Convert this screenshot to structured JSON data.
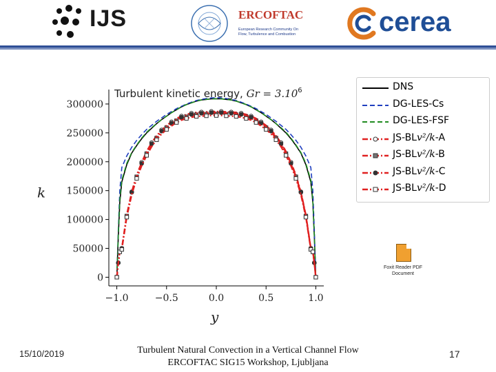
{
  "header": {
    "ijs_logo_text": "IJS",
    "ercoftac_title": "ERCOFTAC",
    "ercoftac_subtitle": "European Research Community On Flow, Turbulence and Combustion",
    "cerea_logo_text": "cerea",
    "rule_color": "#2f4f96"
  },
  "attachment": {
    "icon": "pdf-file-icon",
    "label_line1": "Foxit Reader PDF",
    "label_line2": "Document"
  },
  "footer": {
    "date": "15/10/2019",
    "title_line1": "Turbulent Natural Convection in a Vertical Channel Flow",
    "title_line2": "ERCOFTAC SIG15 Workshop, Ljubljana",
    "page_number": "17"
  },
  "chart_data": {
    "type": "line",
    "title": "Turbulent kinetic energy, Gr = 3.10^6",
    "title_prefix": "Turbulent kinetic energy, ",
    "title_math": "Gr = 3.10",
    "title_exponent": "6",
    "xlabel": "y",
    "ylabel": "k",
    "xlim": [
      -1.08,
      1.08
    ],
    "ylim": [
      -15000,
      325000
    ],
    "xticks": [
      -1.0,
      -0.5,
      0.0,
      0.5,
      1.0
    ],
    "xtick_labels": [
      "−1.0",
      "−0.5",
      "0.0",
      "0.5",
      "1.0"
    ],
    "yticks": [
      0,
      50000,
      100000,
      150000,
      200000,
      250000,
      300000
    ],
    "ytick_labels": [
      "0",
      "50000",
      "100000",
      "150000",
      "200000",
      "250000",
      "300000"
    ],
    "grid": false,
    "legend_position": "outside-right",
    "x": [
      -1.0,
      -0.985,
      -0.97,
      -0.95,
      -0.9,
      -0.85,
      -0.8,
      -0.75,
      -0.7,
      -0.65,
      -0.6,
      -0.55,
      -0.5,
      -0.45,
      -0.4,
      -0.35,
      -0.3,
      -0.25,
      -0.2,
      -0.15,
      -0.1,
      -0.05,
      0.0,
      0.05,
      0.1,
      0.15,
      0.2,
      0.25,
      0.3,
      0.35,
      0.4,
      0.45,
      0.5,
      0.55,
      0.6,
      0.65,
      0.7,
      0.75,
      0.8,
      0.85,
      0.9,
      0.95,
      0.97,
      0.985,
      1.0
    ],
    "series": [
      {
        "name": "DNS",
        "color": "#000000",
        "dash": "solid",
        "marker": "none",
        "values": [
          0,
          70000,
          130000,
          165000,
          195000,
          215000,
          228000,
          240000,
          250000,
          258000,
          266000,
          273000,
          279000,
          285000,
          290000,
          295000,
          299000,
          302000,
          305000,
          307000,
          308000,
          309000,
          309000,
          309000,
          308000,
          307000,
          305000,
          302000,
          299000,
          295000,
          290000,
          285000,
          279000,
          273000,
          266000,
          258000,
          250000,
          240000,
          228000,
          215000,
          195000,
          165000,
          130000,
          70000,
          0
        ]
      },
      {
        "name": "DG-LES-Cs",
        "color": "#1f3fbf",
        "dash": "dashed",
        "marker": "none",
        "values": [
          0,
          80000,
          150000,
          190000,
          210000,
          225000,
          237000,
          247000,
          256000,
          263000,
          270000,
          276000,
          282000,
          287000,
          292000,
          296000,
          300000,
          303000,
          306000,
          308000,
          309500,
          310500,
          311000,
          310500,
          309500,
          308000,
          306000,
          303000,
          300000,
          296000,
          292000,
          287000,
          282000,
          276000,
          270000,
          263000,
          256000,
          247000,
          237000,
          225000,
          210000,
          190000,
          150000,
          80000,
          0
        ]
      },
      {
        "name": "DG-LES-FSF",
        "color": "#1e8a1e",
        "dash": "dashed",
        "marker": "none",
        "values": [
          0,
          72000,
          133000,
          168000,
          197000,
          216000,
          229000,
          241000,
          251000,
          259000,
          266000,
          273000,
          279000,
          285000,
          290000,
          295000,
          299000,
          302000,
          305000,
          307000,
          308000,
          309000,
          309000,
          309000,
          308000,
          307000,
          305000,
          302000,
          299000,
          295000,
          290000,
          285000,
          279000,
          273000,
          266000,
          259000,
          251000,
          241000,
          229000,
          216000,
          197000,
          168000,
          133000,
          72000,
          0
        ]
      },
      {
        "name": "JS-BLv2/k-A",
        "color": "#e02020",
        "dash": "dashdot",
        "marker": "circle",
        "values": [
          0,
          25000,
          45000,
          50000,
          108000,
          148000,
          177000,
          199000,
          218000,
          233000,
          245000,
          255000,
          263000,
          269000,
          275000,
          279000,
          282000,
          284000,
          285500,
          286000,
          286500,
          287000,
          287000,
          287000,
          286500,
          286000,
          285500,
          284000,
          282000,
          279000,
          275000,
          269000,
          263000,
          255000,
          245000,
          233000,
          218000,
          199000,
          177000,
          148000,
          108000,
          50000,
          45000,
          25000,
          0
        ]
      },
      {
        "name": "JS-BLv2/k-B",
        "color": "#e02020",
        "dash": "dashdot",
        "marker": "square",
        "values": [
          0,
          24000,
          44000,
          49000,
          106000,
          146000,
          174000,
          196000,
          214000,
          229000,
          241000,
          251000,
          259000,
          265000,
          271000,
          275000,
          278000,
          280000,
          281500,
          282000,
          282500,
          283000,
          283000,
          283000,
          282500,
          282000,
          281500,
          280000,
          278000,
          275000,
          271000,
          265000,
          259000,
          251000,
          241000,
          229000,
          214000,
          196000,
          174000,
          146000,
          106000,
          49000,
          44000,
          24000,
          0
        ]
      },
      {
        "name": "JS-BLv2/k-C",
        "color": "#e02020",
        "dash": "dashdot",
        "marker": "filled-circle",
        "values": [
          0,
          25000,
          45000,
          50000,
          107000,
          147000,
          175000,
          197000,
          216000,
          231000,
          243000,
          253000,
          261000,
          267000,
          273000,
          277000,
          280000,
          282000,
          283500,
          284000,
          284500,
          285000,
          285000,
          285000,
          284500,
          284000,
          283500,
          282000,
          280000,
          277000,
          273000,
          267000,
          261000,
          253000,
          243000,
          231000,
          216000,
          197000,
          175000,
          147000,
          107000,
          50000,
          45000,
          25000,
          0
        ]
      },
      {
        "name": "JS-BLv2/k-D",
        "color": "#e02020",
        "dash": "dashdot",
        "marker": "open-square",
        "values": [
          0,
          24000,
          44000,
          48000,
          104000,
          143000,
          171000,
          193000,
          211000,
          226000,
          238000,
          248000,
          256000,
          262000,
          268000,
          272000,
          275000,
          277000,
          278500,
          279000,
          279500,
          280000,
          280000,
          280000,
          279500,
          279000,
          278500,
          277000,
          275000,
          272000,
          268000,
          262000,
          256000,
          248000,
          238000,
          226000,
          211000,
          193000,
          171000,
          143000,
          104000,
          48000,
          44000,
          24000,
          0
        ]
      }
    ],
    "legend_labels": [
      {
        "prefix": "DNS",
        "math": "",
        "suffix": ""
      },
      {
        "prefix": "DG-LES-Cs",
        "math": "",
        "suffix": ""
      },
      {
        "prefix": "DG-LES-FSF",
        "math": "",
        "suffix": ""
      },
      {
        "prefix": "JS-BL",
        "math": "v²/k",
        "suffix": "-A"
      },
      {
        "prefix": "JS-BL",
        "math": "v²/k",
        "suffix": "-B"
      },
      {
        "prefix": "JS-BL",
        "math": "v²/k",
        "suffix": "-C"
      },
      {
        "prefix": "JS-BL",
        "math": "v²/k",
        "suffix": "-D"
      }
    ]
  }
}
